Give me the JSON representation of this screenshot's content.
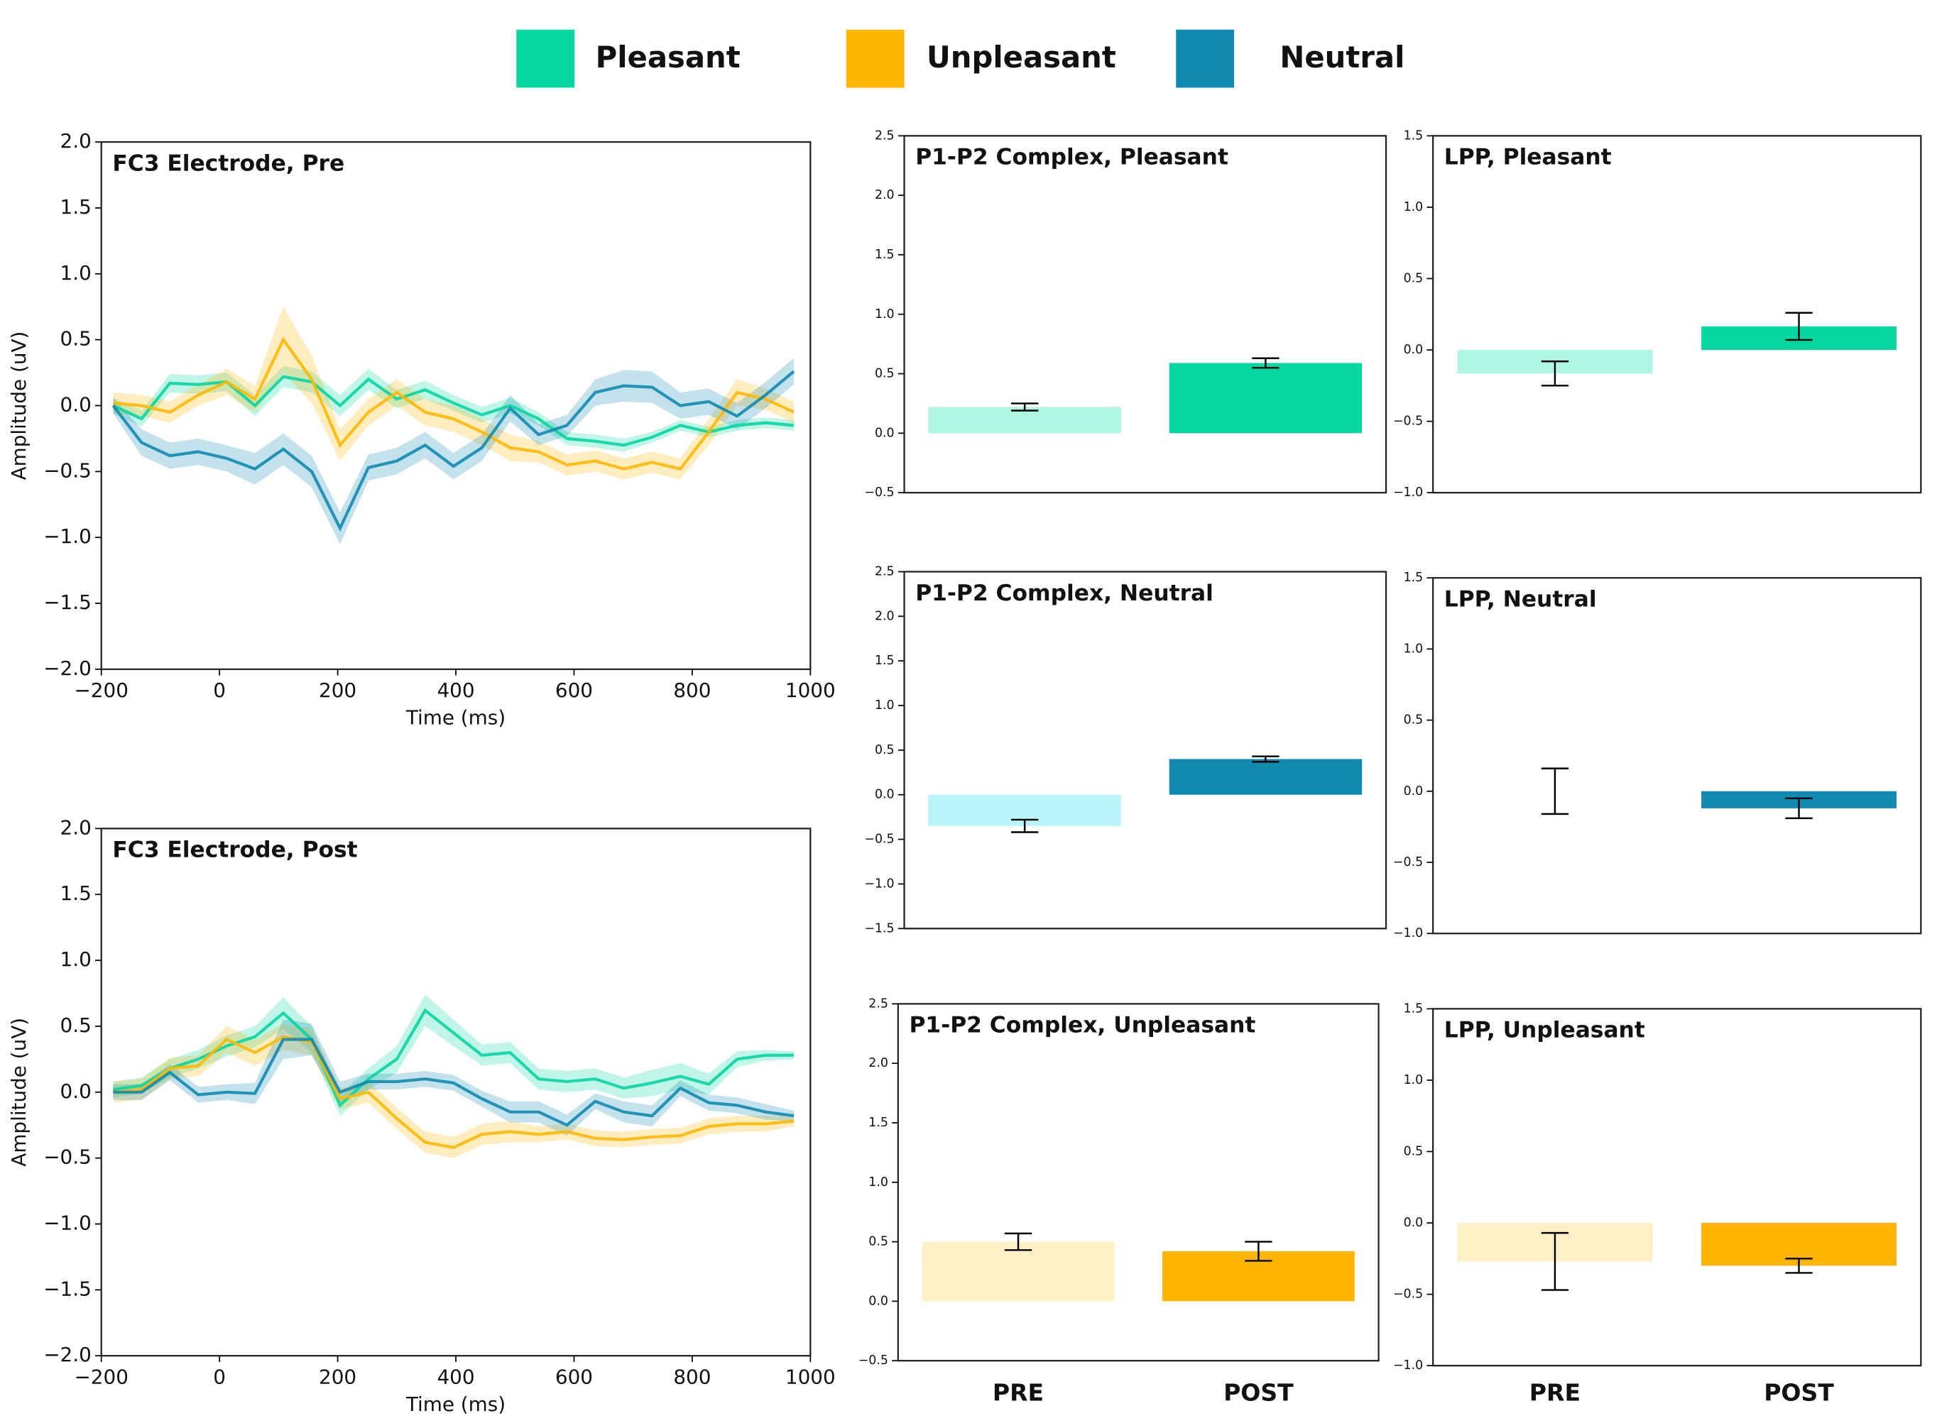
{
  "chart_data": [
    {
      "type": "line",
      "title": "FC3 Electrode, Pre",
      "xlabel": "Time (ms)",
      "ylabel": "Amplitude (uV)",
      "x": [
        -180,
        -132,
        -84,
        -36,
        12,
        60,
        108,
        156,
        204,
        252,
        300,
        348,
        396,
        444,
        492,
        540,
        588,
        636,
        684,
        732,
        780,
        828,
        876,
        924,
        972
      ],
      "xlim": [
        -200,
        1000
      ],
      "ylim": [
        -2,
        2
      ],
      "xticks": [
        {
          "value": -200,
          "label": "−200"
        },
        0,
        200,
        400,
        600,
        800,
        1000
      ],
      "yticks": [
        {
          "value": -2,
          "label": "−2.0"
        },
        {
          "value": -1.5,
          "label": "−1.5"
        },
        {
          "value": -1,
          "label": "−1.0"
        },
        {
          "value": -0.5,
          "label": "−0.5"
        },
        {
          "value": 0,
          "label": "0.0"
        },
        0.5,
        {
          "value": 1,
          "label": "1.0"
        },
        1.5,
        {
          "value": 2,
          "label": "2.0"
        }
      ],
      "series": [
        {
          "name": "Pleasant",
          "color": "#06d6a0",
          "values": [
            0,
            -0.1,
            0.17,
            0.16,
            0.18,
            0,
            0.22,
            0.18,
            0,
            0.2,
            0.05,
            0.12,
            0.02,
            -0.07,
            0,
            -0.1,
            -0.25,
            -0.27,
            -0.3,
            -0.24,
            -0.15,
            -0.2,
            -0.15,
            -0.13,
            -0.15
          ],
          "errors": [
            0.06,
            0.06,
            0.07,
            0.07,
            0.07,
            0.08,
            0.08,
            0.08,
            0.08,
            0.08,
            0.07,
            0.07,
            0.06,
            0.06,
            0.06,
            0.05,
            0.05,
            0.05,
            0.05,
            0.04,
            0.04,
            0.04,
            0.04,
            0.04,
            0.04
          ]
        },
        {
          "name": "Unpleasant",
          "color": "#ffb703",
          "values": [
            0.02,
            0,
            -0.05,
            0.08,
            0.18,
            0.05,
            0.5,
            0.2,
            -0.3,
            -0.05,
            0.1,
            -0.05,
            -0.1,
            -0.2,
            -0.32,
            -0.35,
            -0.45,
            -0.42,
            -0.48,
            -0.43,
            -0.48,
            -0.2,
            0.1,
            0.05,
            -0.05
          ],
          "errors": [
            0.08,
            0.08,
            0.08,
            0.08,
            0.1,
            0.1,
            0.25,
            0.18,
            0.12,
            0.1,
            0.1,
            0.1,
            0.1,
            0.1,
            0.1,
            0.08,
            0.08,
            0.08,
            0.08,
            0.08,
            0.08,
            0.1,
            0.1,
            0.08,
            0.08
          ]
        },
        {
          "name": "Neutral",
          "color": "#118ab2",
          "values": [
            0,
            -0.28,
            -0.38,
            -0.35,
            -0.4,
            -0.48,
            -0.33,
            -0.5,
            -0.93,
            -0.47,
            -0.42,
            -0.3,
            -0.46,
            -0.32,
            -0.02,
            -0.22,
            -0.15,
            0.1,
            0.15,
            0.14,
            0,
            0.03,
            -0.08,
            0.08,
            0.26
          ],
          "errors": [
            0.06,
            0.1,
            0.1,
            0.1,
            0.1,
            0.12,
            0.12,
            0.12,
            0.12,
            0.1,
            0.1,
            0.1,
            0.1,
            0.1,
            0.1,
            0.08,
            0.08,
            0.1,
            0.12,
            0.12,
            0.1,
            0.1,
            0.1,
            0.1,
            0.1
          ]
        }
      ]
    },
    {
      "type": "line",
      "title": "FC3 Electrode, Post",
      "xlabel": "Time (ms)",
      "ylabel": "Amplitude (uV)",
      "x": [
        -180,
        -132,
        -84,
        -36,
        12,
        60,
        108,
        156,
        204,
        252,
        300,
        348,
        396,
        444,
        492,
        540,
        588,
        636,
        684,
        732,
        780,
        828,
        876,
        924,
        972
      ],
      "xlim": [
        -200,
        1000
      ],
      "ylim": [
        -2,
        2
      ],
      "xticks": [
        {
          "value": -200,
          "label": "−200"
        },
        0,
        200,
        400,
        600,
        800,
        1000
      ],
      "yticks": [
        {
          "value": -2,
          "label": "−2.0"
        },
        {
          "value": -1.5,
          "label": "−1.5"
        },
        {
          "value": -1,
          "label": "−1.0"
        },
        {
          "value": -0.5,
          "label": "−0.5"
        },
        {
          "value": 0,
          "label": "0.0"
        },
        0.5,
        {
          "value": 1,
          "label": "1.0"
        },
        1.5,
        {
          "value": 2,
          "label": "2.0"
        }
      ],
      "series": [
        {
          "color": "#06d6a0",
          "values": [
            0.02,
            0.05,
            0.18,
            0.25,
            0.35,
            0.42,
            0.6,
            0.4,
            -0.1,
            0.1,
            0.25,
            0.62,
            0.45,
            0.28,
            0.3,
            0.1,
            0.08,
            0.1,
            0.03,
            0.07,
            0.12,
            0.06,
            0.25,
            0.28,
            0.28
          ],
          "errors": [
            0.06,
            0.06,
            0.07,
            0.07,
            0.08,
            0.08,
            0.12,
            0.1,
            0.08,
            0.08,
            0.1,
            0.12,
            0.1,
            0.08,
            0.08,
            0.08,
            0.08,
            0.08,
            0.08,
            0.1,
            0.1,
            0.08,
            0.06,
            0.04,
            0.03
          ]
        },
        {
          "color": "#ffb703",
          "values": [
            0,
            0.02,
            0.18,
            0.2,
            0.4,
            0.3,
            0.42,
            0.38,
            -0.05,
            0,
            -0.2,
            -0.38,
            -0.42,
            -0.32,
            -0.3,
            -0.32,
            -0.3,
            -0.35,
            -0.36,
            -0.34,
            -0.33,
            -0.26,
            -0.24,
            -0.24,
            -0.22
          ],
          "errors": [
            0.08,
            0.08,
            0.08,
            0.08,
            0.1,
            0.1,
            0.1,
            0.1,
            0.08,
            0.08,
            0.08,
            0.08,
            0.08,
            0.08,
            0.08,
            0.06,
            0.06,
            0.06,
            0.06,
            0.06,
            0.06,
            0.06,
            0.06,
            0.06,
            0.04
          ]
        },
        {
          "color": "#118ab2",
          "values": [
            0,
            0,
            0.15,
            -0.02,
            0,
            -0.01,
            0.4,
            0.4,
            0,
            0.08,
            0.08,
            0.1,
            0.07,
            -0.05,
            -0.15,
            -0.15,
            -0.25,
            -0.07,
            -0.15,
            -0.18,
            0.03,
            -0.08,
            -0.1,
            -0.15,
            -0.18
          ],
          "errors": [
            0.06,
            0.06,
            0.06,
            0.06,
            0.06,
            0.08,
            0.15,
            0.12,
            0.08,
            0.06,
            0.06,
            0.06,
            0.06,
            0.06,
            0.08,
            0.08,
            0.08,
            0.06,
            0.08,
            0.08,
            0.06,
            0.06,
            0.06,
            0.06,
            0.04
          ]
        }
      ]
    },
    {
      "type": "bar",
      "title": "P1-P2 Complex, Pleasant",
      "categories": [
        null,
        null
      ],
      "values": [
        0.22,
        0.59
      ],
      "errors": [
        0.03,
        0.04
      ],
      "colors": [
        "#aef5e2",
        "#06d6a0"
      ],
      "ylim": [
        -0.5,
        2.5
      ],
      "yticks": [
        {
          "value": -0.5,
          "label": "−0.5"
        },
        {
          "value": 0,
          "label": "0.0"
        },
        0.5,
        {
          "value": 1,
          "label": "1.0"
        },
        1.5,
        {
          "value": 2,
          "label": "2.0"
        },
        2.5
      ]
    },
    {
      "type": "bar",
      "title": "LPP, Pleasant",
      "categories": [
        null,
        null
      ],
      "values": [
        -0.165,
        0.165
      ],
      "errors": [
        0.085,
        0.095
      ],
      "colors": [
        "#aef5e2",
        "#06d6a0"
      ],
      "ylim": [
        -1,
        1.5
      ],
      "yticks": [
        {
          "value": -1,
          "label": "−1.0"
        },
        {
          "value": -0.5,
          "label": "−0.5"
        },
        {
          "value": 0,
          "label": "0.0"
        },
        0.5,
        {
          "value": 1,
          "label": "1.0"
        },
        1.5
      ]
    },
    {
      "type": "bar",
      "title": "P1-P2 Complex, Neutral",
      "categories": [
        null,
        null
      ],
      "values": [
        -0.35,
        0.4
      ],
      "errors": [
        0.07,
        0.03
      ],
      "colors": [
        "#b8f4f8",
        "#118ab2"
      ],
      "ylim": [
        -1.5,
        2.5
      ],
      "yticks": [
        {
          "value": -1.5,
          "label": "−1.5"
        },
        {
          "value": -1,
          "label": "−1.0"
        },
        {
          "value": -0.5,
          "label": "−0.5"
        },
        {
          "value": 0,
          "label": "0.0"
        },
        0.5,
        {
          "value": 1,
          "label": "1.0"
        },
        1.5,
        {
          "value": 2,
          "label": "2.0"
        },
        2.5
      ]
    },
    {
      "type": "bar",
      "title": "LPP, Neutral",
      "categories": [
        null,
        null
      ],
      "values": [
        0,
        -0.12
      ],
      "errors": [
        0.16,
        0.07
      ],
      "colors": [
        "#b8f4f8",
        "#118ab2"
      ],
      "ylim": [
        -1,
        1.5
      ],
      "yticks": [
        {
          "value": -1,
          "label": "−1.0"
        },
        {
          "value": -0.5,
          "label": "−0.5"
        },
        {
          "value": 0,
          "label": "0.0"
        },
        0.5,
        {
          "value": 1,
          "label": "1.0"
        },
        1.5
      ]
    },
    {
      "type": "bar",
      "title": "P1-P2 Complex, Unpleasant",
      "categories": [
        "PRE",
        "POST"
      ],
      "values": [
        0.5,
        0.42
      ],
      "errors": [
        0.07,
        0.08
      ],
      "colors": [
        "#fff0c8",
        "#ffb400"
      ],
      "ylim": [
        -0.5,
        2.5
      ],
      "yticks": [
        {
          "value": -0.5,
          "label": "−0.5"
        },
        {
          "value": 0,
          "label": "0.0"
        },
        0.5,
        {
          "value": 1,
          "label": "1.0"
        },
        1.5,
        {
          "value": 2,
          "label": "2.0"
        },
        2.5
      ]
    },
    {
      "type": "bar",
      "title": "LPP, Unpleasant",
      "categories": [
        "PRE",
        "POST"
      ],
      "values": [
        -0.27,
        -0.3
      ],
      "errors": [
        0.2,
        0.05
      ],
      "colors": [
        "#fff0c8",
        "#ffb400"
      ],
      "ylim": [
        -1,
        1.5
      ],
      "yticks": [
        {
          "value": -1,
          "label": "−1.0"
        },
        {
          "value": -0.5,
          "label": "−0.5"
        },
        {
          "value": 0,
          "label": "0.0"
        },
        0.5,
        {
          "value": 1,
          "label": "1.0"
        },
        1.5
      ]
    }
  ]
}
